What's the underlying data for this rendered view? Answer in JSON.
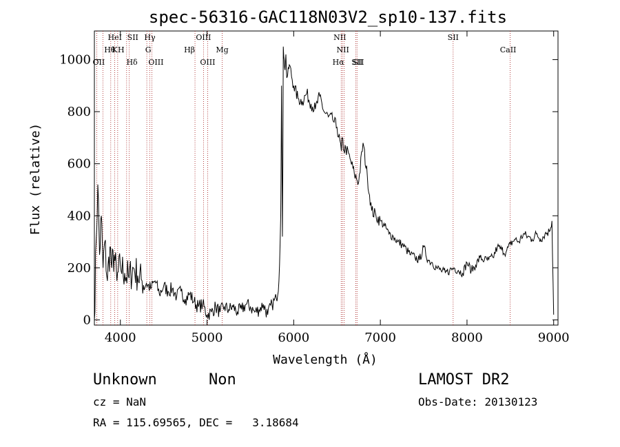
{
  "chart_data": {
    "type": "line",
    "title": "spec-56316-GAC118N03V2_sp10-137.fits",
    "xlabel": "Wavelength (Å)",
    "ylabel": "Flux (relative)",
    "xlim": [
      3700,
      9050
    ],
    "ylim": [
      -20,
      1110
    ],
    "xticks": [
      4000,
      5000,
      6000,
      7000,
      8000,
      9000
    ],
    "yticks": [
      0,
      200,
      400,
      600,
      800,
      1000
    ],
    "grid": false,
    "series": [
      {
        "color": "#000000",
        "x": [
          3700,
          3720,
          3740,
          3760,
          3780,
          3800,
          3820,
          3850,
          3880,
          3900,
          3930,
          3960,
          4000,
          4050,
          4100,
          4150,
          4200,
          4250,
          4300,
          4350,
          4400,
          4450,
          4500,
          4550,
          4600,
          4650,
          4700,
          4750,
          4800,
          4850,
          4900,
          4950,
          5000,
          5050,
          5100,
          5150,
          5200,
          5250,
          5300,
          5350,
          5400,
          5450,
          5500,
          5550,
          5600,
          5650,
          5700,
          5750,
          5800,
          5830,
          5850,
          5860,
          5870,
          5875,
          5880,
          5890,
          5900,
          5910,
          5920,
          5930,
          5950,
          6000,
          6050,
          6100,
          6150,
          6200,
          6250,
          6300,
          6350,
          6400,
          6450,
          6500,
          6550,
          6560,
          6580,
          6600,
          6650,
          6700,
          6750,
          6800,
          6850,
          6900,
          6950,
          7000,
          7050,
          7100,
          7150,
          7200,
          7250,
          7300,
          7350,
          7400,
          7450,
          7500,
          7550,
          7600,
          7650,
          7700,
          7750,
          7800,
          7850,
          7900,
          7950,
          8000,
          8050,
          8100,
          8150,
          8200,
          8250,
          8300,
          8350,
          8400,
          8450,
          8500,
          8550,
          8600,
          8650,
          8700,
          8750,
          8800,
          8850,
          8900,
          8950,
          8980,
          9000
        ],
        "y": [
          0,
          300,
          520,
          250,
          400,
          200,
          300,
          150,
          280,
          200,
          250,
          150,
          210,
          180,
          160,
          200,
          170,
          150,
          140,
          120,
          150,
          100,
          130,
          110,
          120,
          90,
          110,
          80,
          100,
          70,
          50,
          60,
          20,
          30,
          50,
          30,
          50,
          40,
          50,
          30,
          40,
          60,
          50,
          30,
          40,
          60,
          20,
          60,
          80,
          150,
          400,
          900,
          320,
          600,
          1050,
          1000,
          960,
          1020,
          930,
          940,
          980,
          900,
          850,
          840,
          870,
          830,
          810,
          860,
          800,
          780,
          770,
          740,
          650,
          700,
          650,
          660,
          620,
          560,
          530,
          680,
          550,
          420,
          400,
          380,
          360,
          330,
          320,
          300,
          290,
          270,
          250,
          240,
          230,
          280,
          230,
          220,
          200,
          190,
          180,
          190,
          200,
          190,
          180,
          220,
          190,
          210,
          240,
          230,
          230,
          240,
          280,
          270,
          260,
          290,
          310,
          300,
          330,
          320,
          310,
          330,
          310,
          330,
          340,
          380,
          20
        ]
      }
    ],
    "lines": [
      {
        "label": "Hθ",
        "x": 3798
      },
      {
        "label": "OII",
        "x": 3727
      },
      {
        "label": "HeI",
        "x": 3889
      },
      {
        "label": "K",
        "x": 3934
      },
      {
        "label": "H",
        "x": 3969
      },
      {
        "label": "SII",
        "x": 4072
      },
      {
        "label": "Hδ",
        "x": 4102
      },
      {
        "label": "Hγ",
        "x": 4340
      },
      {
        "label": "G",
        "x": 4305
      },
      {
        "label": "OIII",
        "x": 4363
      },
      {
        "label": "Hβ",
        "x": 4861
      },
      {
        "label": "OIII",
        "x": 4959
      },
      {
        "label": "OIII",
        "x": 5007
      },
      {
        "label": "Mg",
        "x": 5175
      },
      {
        "label": "NII",
        "x": 6548
      },
      {
        "label": "Hα",
        "x": 6563
      },
      {
        "label": "NII",
        "x": 6583
      },
      {
        "label": "SII",
        "x": 6716
      },
      {
        "label": "SII",
        "x": 6731
      },
      {
        "label": "SII",
        "x": 7840
      },
      {
        "label": "CaII",
        "x": 8498
      }
    ]
  },
  "footer": {
    "object_class": "Unknown",
    "subclass": "Non",
    "survey": "LAMOST DR2",
    "cz": "cz = NaN",
    "obs_date": "Obs-Date: 20130123",
    "radec": "RA = 115.69565, DEC =   3.18684"
  }
}
